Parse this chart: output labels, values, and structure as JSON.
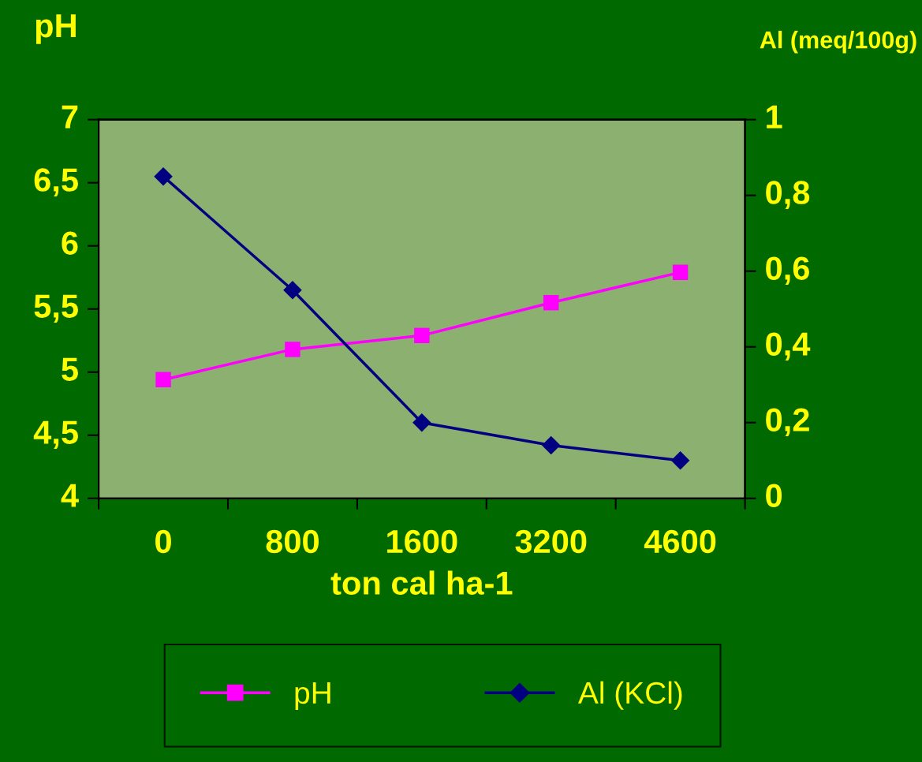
{
  "chart_data": {
    "type": "line",
    "xlabel": "ton cal ha-1",
    "ylabel": "pH",
    "y2label": "Al (meq/100g)",
    "categories": [
      "0",
      "800",
      "1600",
      "3200",
      "4600"
    ],
    "series": [
      {
        "name": "pH",
        "color": "#ff00ff",
        "marker": "square",
        "values": [
          4.94,
          5.18,
          5.29,
          5.55,
          5.79
        ]
      },
      {
        "name": "Al (KCl)",
        "color": "#000080",
        "marker": "diamond",
        "axis": "y2",
        "values": [
          0.85,
          0.55,
          0.2,
          0.14,
          0.1
        ]
      }
    ],
    "ylim": [
      4,
      7
    ],
    "yticks": [
      4,
      {
        "value": 4.5,
        "label": "4,5"
      },
      5,
      {
        "value": 5.5,
        "label": "5,5"
      },
      6,
      {
        "value": 6.5,
        "label": "6,5"
      },
      7
    ],
    "y2lim": [
      0,
      1
    ],
    "y2ticks": [
      0,
      {
        "value": 0.2,
        "label": "0,2"
      },
      {
        "value": 0.4,
        "label": "0,4"
      },
      {
        "value": 0.6,
        "label": "0,6"
      },
      {
        "value": 0.8,
        "label": "0,8"
      },
      1
    ],
    "grid": false,
    "legend": "bottom",
    "line_style": "solid"
  }
}
